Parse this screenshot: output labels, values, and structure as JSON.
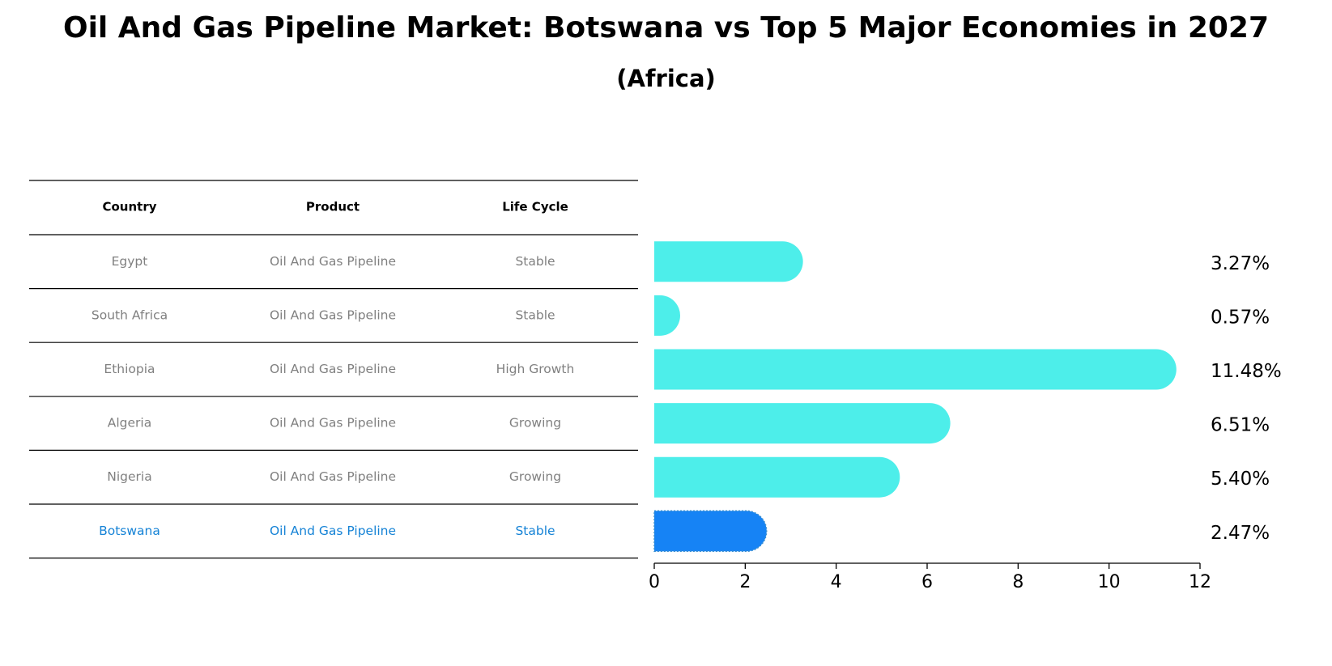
{
  "title": "Oil And Gas Pipeline Market: Botswana vs Top 5 Major Economies in 2027",
  "subtitle": "(Africa)",
  "table": {
    "headers": [
      "Country",
      "Product",
      "Life Cycle"
    ],
    "rows": [
      {
        "country": "Egypt",
        "product": "Oil And Gas Pipeline",
        "life_cycle": "Stable"
      },
      {
        "country": "South Africa",
        "product": "Oil And Gas Pipeline",
        "life_cycle": "Stable"
      },
      {
        "country": "Ethiopia",
        "product": "Oil And Gas Pipeline",
        "life_cycle": "High Growth"
      },
      {
        "country": "Algeria",
        "product": "Oil And Gas Pipeline",
        "life_cycle": "Growing"
      },
      {
        "country": "Nigeria",
        "product": "Oil And Gas Pipeline",
        "life_cycle": "Growing"
      },
      {
        "country": "Botswana",
        "product": "Oil And Gas Pipeline",
        "life_cycle": "Stable"
      }
    ]
  },
  "chart_data": {
    "type": "bar",
    "orientation": "horizontal",
    "title": "Oil And Gas Pipeline Market: Botswana vs Top 5 Major Economies in 2027",
    "subtitle": "(Africa)",
    "categories": [
      "Egypt",
      "South Africa",
      "Ethiopia",
      "Algeria",
      "Nigeria",
      "Botswana"
    ],
    "values": [
      3.27,
      0.57,
      11.48,
      6.51,
      5.4,
      2.47
    ],
    "value_labels": [
      "3.27%",
      "0.57%",
      "11.48%",
      "6.51%",
      "5.40%",
      "2.47%"
    ],
    "highlight": "Botswana",
    "xlim": [
      0,
      12
    ],
    "xticks": [
      0,
      2,
      4,
      6,
      8,
      10,
      12
    ],
    "xlabel": "",
    "ylabel": "",
    "grid": false,
    "colors": {
      "default": "#4deeea",
      "highlight": "#1683f5",
      "highlight_text": "#1683d6"
    }
  }
}
